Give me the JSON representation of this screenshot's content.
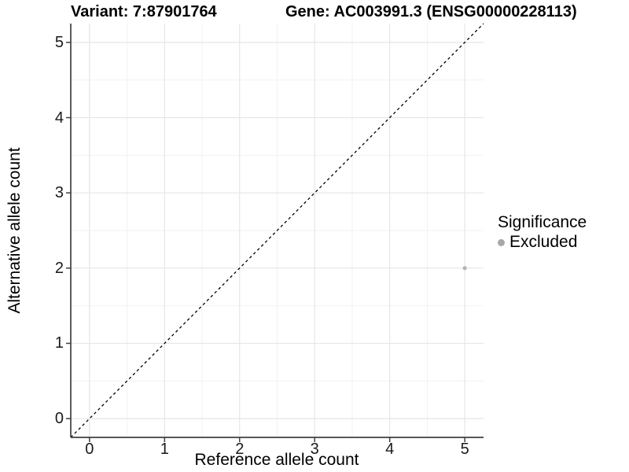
{
  "titles": {
    "variant": "Variant: 7:87901764",
    "gene": "Gene: AC003991.3 (ENSG00000228113)"
  },
  "chart_data": {
    "type": "scatter",
    "xlabel": "Reference allele count",
    "ylabel": "Alternative allele count",
    "xlim": [
      -0.25,
      5.25
    ],
    "ylim": [
      -0.25,
      5.25
    ],
    "x_ticks": [
      0,
      1,
      2,
      3,
      4,
      5
    ],
    "y_ticks": [
      0,
      1,
      2,
      3,
      4,
      5
    ],
    "minor_grid_step": 0.5,
    "grid": true,
    "identity_line": {
      "slope": 1,
      "intercept": 0,
      "style": "dashed",
      "color": "#000000"
    },
    "points": [
      {
        "x": 5,
        "y": 2,
        "significance": "Excluded"
      }
    ],
    "legend": {
      "title": "Significance",
      "position": "right",
      "entries": [
        {
          "label": "Excluded",
          "color": "#a8a8a8"
        }
      ]
    },
    "colors": {
      "background": "#ffffff",
      "grid_major": "#e6e6e6",
      "grid_minor": "#f2f2f2",
      "axis": "#404040",
      "point": "#b5b5b5",
      "text": "#000000"
    }
  }
}
